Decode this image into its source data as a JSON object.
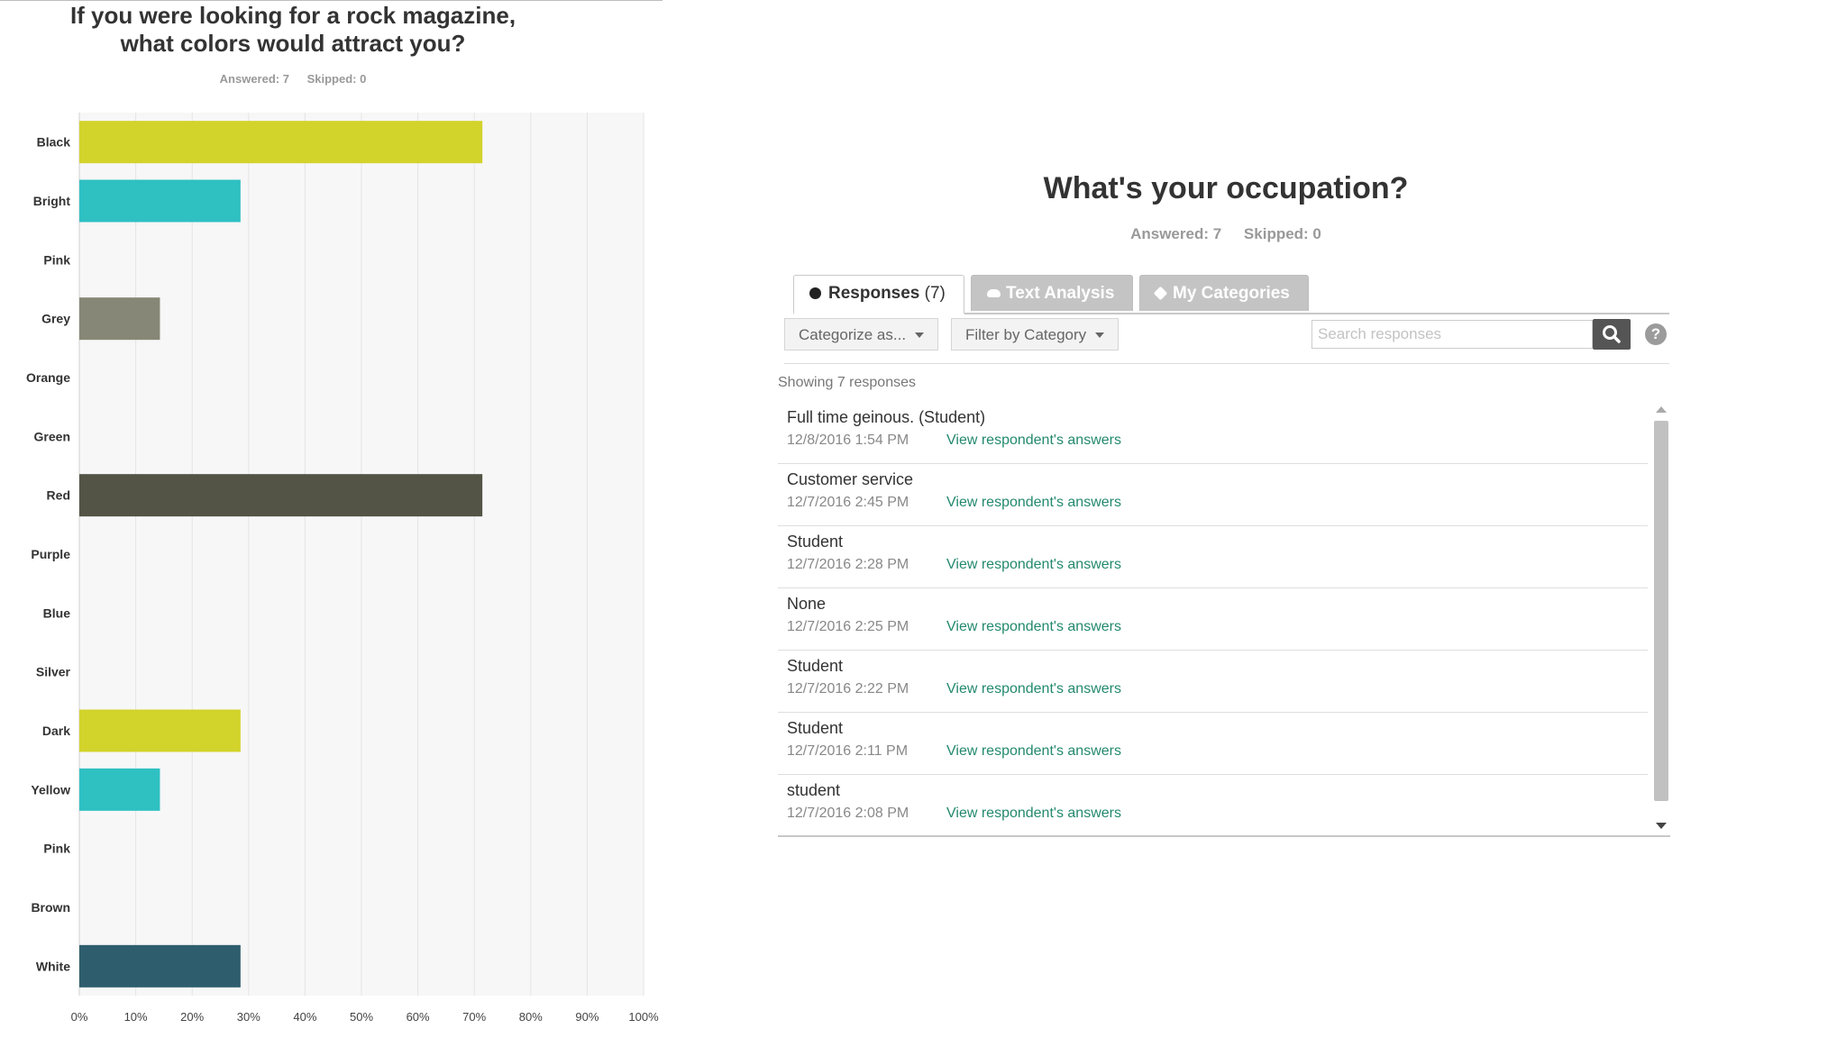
{
  "chart": {
    "title_line1": "If you were looking for a rock magazine,",
    "title_line2": "what colors would attract you?",
    "answered": "Answered: 7",
    "skipped": "Skipped: 0"
  },
  "chart_data": {
    "type": "bar",
    "orientation": "horizontal",
    "title": "If you were looking for a rock magazine, what colors would attract you?",
    "categories": [
      "Black",
      "Bright",
      "Pink",
      "Grey",
      "Orange",
      "Green",
      "Red",
      "Purple",
      "Blue",
      "Silver",
      "Dark",
      "Yellow",
      "Pink",
      "Brown",
      "White"
    ],
    "values": [
      71.43,
      28.57,
      0,
      14.29,
      0,
      0,
      71.43,
      0,
      0,
      0,
      28.57,
      14.29,
      0,
      0,
      28.57
    ],
    "bar_colors": [
      "#d2d32b",
      "#2fc0c2",
      "#d2d32b",
      "#878777",
      "#2fc0c2",
      "#d2d32b",
      "#545446",
      "#2fc0c2",
      "#d2d32b",
      "#878777",
      "#d2d32b",
      "#2fc0c2",
      "#d2d32b",
      "#878777",
      "#2e5e6e"
    ],
    "x_ticks": [
      "0%",
      "10%",
      "20%",
      "30%",
      "40%",
      "50%",
      "60%",
      "70%",
      "80%",
      "90%",
      "100%"
    ],
    "xlim": [
      0,
      100
    ],
    "xlabel": "",
    "ylabel": "",
    "grid": true,
    "legend": "none"
  },
  "occupation": {
    "title": "What's your occupation?",
    "answered": "Answered: 7",
    "skipped": "Skipped: 0",
    "tabs": [
      {
        "label": "Responses",
        "count": "(7)",
        "icon": "dot-icon",
        "active": true
      },
      {
        "label": "Text Analysis",
        "icon": "cloud-icon",
        "active": false
      },
      {
        "label": "My Categories",
        "icon": "tag-icon",
        "active": false
      }
    ],
    "categorize_label": "Categorize as...",
    "filter_label": "Filter by Category",
    "search_placeholder": "Search responses",
    "help_label": "?",
    "showing": "Showing 7 responses",
    "responses": [
      {
        "text": "Full time geinous. (Student)",
        "date": "12/8/2016 1:54 PM",
        "link": "View respondent's answers"
      },
      {
        "text": "Customer service",
        "date": "12/7/2016 2:45 PM",
        "link": "View respondent's answers"
      },
      {
        "text": "Student",
        "date": "12/7/2016 2:28 PM",
        "link": "View respondent's answers"
      },
      {
        "text": "None",
        "date": "12/7/2016 2:25 PM",
        "link": "View respondent's answers"
      },
      {
        "text": "Student",
        "date": "12/7/2016 2:22 PM",
        "link": "View respondent's answers"
      },
      {
        "text": "Student",
        "date": "12/7/2016 2:11 PM",
        "link": "View respondent's answers"
      },
      {
        "text": "student",
        "date": "12/7/2016 2:08 PM",
        "link": "View respondent's answers"
      }
    ],
    "accent_link_color": "#23896e"
  }
}
